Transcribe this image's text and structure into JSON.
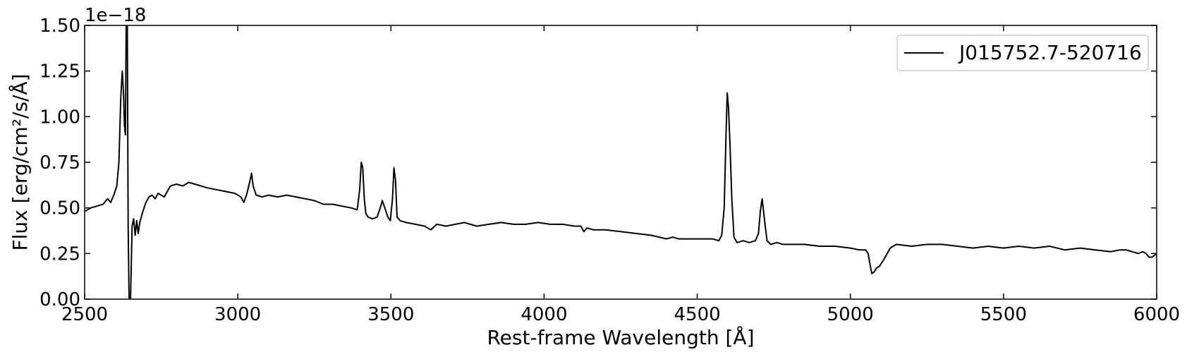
{
  "chart_data": {
    "type": "line",
    "xlabel": "Rest-frame Wavelength [Å]",
    "ylabel": "Flux [erg/cm²/s/Å]",
    "y_multiplier": "1e−18",
    "xlim": [
      2500,
      6000
    ],
    "ylim": [
      0.0,
      1.5
    ],
    "xticks": [
      "2500",
      "3000",
      "3500",
      "4000",
      "4500",
      "5000",
      "5500",
      "6000"
    ],
    "yticks": [
      "0.00",
      "0.25",
      "0.50",
      "0.75",
      "1.00",
      "1.25",
      "1.50"
    ],
    "grid": false,
    "legend_position": "top-right",
    "series": [
      {
        "name": "J015752.7-520716",
        "color": "#000000",
        "x": [
          2500,
          2520,
          2540,
          2560,
          2575,
          2585,
          2595,
          2605,
          2612,
          2618,
          2623,
          2627,
          2630,
          2633,
          2636,
          2639,
          2642,
          2646,
          2650,
          2655,
          2660,
          2665,
          2670,
          2675,
          2680,
          2690,
          2700,
          2710,
          2720,
          2730,
          2740,
          2760,
          2780,
          2800,
          2820,
          2840,
          2860,
          2880,
          2900,
          2930,
          2960,
          2990,
          3010,
          3020,
          3030,
          3040,
          3045,
          3050,
          3060,
          3080,
          3100,
          3130,
          3160,
          3190,
          3220,
          3250,
          3280,
          3310,
          3340,
          3370,
          3390,
          3398,
          3403,
          3408,
          3413,
          3418,
          3425,
          3440,
          3455,
          3465,
          3472,
          3480,
          3490,
          3498,
          3505,
          3510,
          3515,
          3520,
          3530,
          3550,
          3580,
          3610,
          3630,
          3650,
          3680,
          3710,
          3740,
          3780,
          3820,
          3860,
          3900,
          3940,
          3980,
          4020,
          4060,
          4100,
          4120,
          4130,
          4140,
          4160,
          4200,
          4250,
          4300,
          4350,
          4400,
          4420,
          4440,
          4480,
          4520,
          4550,
          4570,
          4580,
          4588,
          4594,
          4598,
          4602,
          4607,
          4613,
          4620,
          4630,
          4650,
          4670,
          4690,
          4700,
          4706,
          4712,
          4718,
          4722,
          4728,
          4740,
          4760,
          4780,
          4800,
          4850,
          4900,
          4950,
          5000,
          5030,
          5050,
          5058,
          5063,
          5070,
          5078,
          5085,
          5095,
          5110,
          5130,
          5150,
          5200,
          5250,
          5300,
          5350,
          5400,
          5450,
          5500,
          5550,
          5600,
          5650,
          5700,
          5750,
          5800,
          5850,
          5880,
          5900,
          5920,
          5940,
          5955,
          5965,
          5975,
          5985,
          6000
        ],
        "y": [
          0.48,
          0.5,
          0.51,
          0.52,
          0.55,
          0.53,
          0.57,
          0.62,
          0.75,
          1.1,
          1.25,
          1.12,
          0.95,
          0.9,
          1.6,
          1.6,
          0.4,
          -0.1,
          0.0,
          0.4,
          0.44,
          0.35,
          0.43,
          0.36,
          0.42,
          0.48,
          0.53,
          0.56,
          0.57,
          0.55,
          0.58,
          0.56,
          0.62,
          0.63,
          0.62,
          0.64,
          0.63,
          0.62,
          0.61,
          0.6,
          0.59,
          0.58,
          0.56,
          0.53,
          0.58,
          0.65,
          0.69,
          0.62,
          0.57,
          0.56,
          0.57,
          0.56,
          0.57,
          0.56,
          0.55,
          0.54,
          0.52,
          0.52,
          0.51,
          0.5,
          0.49,
          0.6,
          0.75,
          0.72,
          0.55,
          0.47,
          0.45,
          0.44,
          0.45,
          0.5,
          0.54,
          0.5,
          0.45,
          0.43,
          0.55,
          0.72,
          0.65,
          0.45,
          0.43,
          0.42,
          0.41,
          0.4,
          0.38,
          0.41,
          0.4,
          0.41,
          0.42,
          0.4,
          0.41,
          0.42,
          0.41,
          0.41,
          0.42,
          0.41,
          0.41,
          0.4,
          0.4,
          0.37,
          0.39,
          0.38,
          0.38,
          0.37,
          0.36,
          0.35,
          0.33,
          0.34,
          0.33,
          0.33,
          0.33,
          0.33,
          0.32,
          0.35,
          0.5,
          0.9,
          1.13,
          1.05,
          0.85,
          0.55,
          0.34,
          0.31,
          0.32,
          0.31,
          0.32,
          0.36,
          0.48,
          0.55,
          0.46,
          0.4,
          0.32,
          0.3,
          0.31,
          0.3,
          0.3,
          0.3,
          0.29,
          0.29,
          0.28,
          0.27,
          0.27,
          0.25,
          0.2,
          0.14,
          0.15,
          0.17,
          0.18,
          0.22,
          0.28,
          0.3,
          0.29,
          0.3,
          0.3,
          0.29,
          0.28,
          0.29,
          0.28,
          0.29,
          0.28,
          0.29,
          0.27,
          0.28,
          0.27,
          0.26,
          0.27,
          0.27,
          0.26,
          0.25,
          0.26,
          0.25,
          0.23,
          0.23,
          0.25
        ]
      }
    ]
  }
}
